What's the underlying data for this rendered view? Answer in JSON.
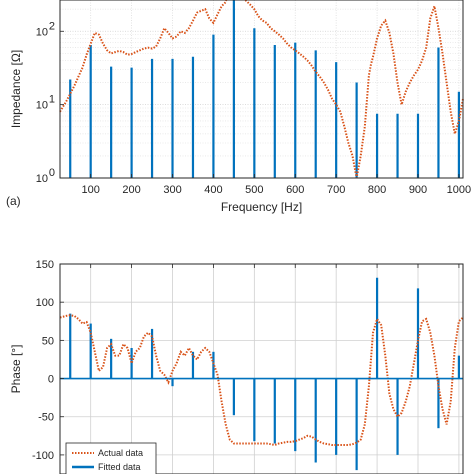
{
  "chart_data": [
    {
      "type": "line",
      "panel_label": "(a)",
      "xlabel": "Frequency [Hz]",
      "ylabel": "Impedance [Ω]",
      "yscale": "log",
      "xlim": [
        25,
        1010
      ],
      "ylim": [
        1,
        500
      ],
      "grid": true,
      "xticks": [
        100,
        200,
        300,
        400,
        500,
        600,
        700,
        800,
        900,
        1000
      ],
      "yticks": [
        {
          "v": 1,
          "label": "10^0"
        },
        {
          "v": 10,
          "label": "10^1"
        },
        {
          "v": 100,
          "label": "10^2"
        }
      ],
      "series": [
        {
          "name": "Actual data",
          "style": "dotted-line",
          "color": "#d95319",
          "x": [
            25,
            40,
            50,
            60,
            70,
            80,
            90,
            100,
            110,
            120,
            130,
            140,
            150,
            160,
            170,
            180,
            190,
            200,
            210,
            220,
            230,
            240,
            250,
            260,
            270,
            280,
            290,
            300,
            310,
            320,
            330,
            340,
            350,
            360,
            370,
            380,
            390,
            400,
            410,
            420,
            430,
            440,
            450,
            460,
            470,
            480,
            490,
            500,
            510,
            520,
            530,
            540,
            550,
            560,
            570,
            580,
            590,
            600,
            610,
            620,
            630,
            640,
            650,
            660,
            670,
            680,
            690,
            700,
            710,
            720,
            730,
            740,
            750,
            760,
            770,
            780,
            785,
            790,
            800,
            810,
            820,
            830,
            840,
            850,
            860,
            870,
            880,
            890,
            900,
            910,
            920,
            930,
            940,
            950,
            960,
            970,
            980,
            990,
            1000,
            1010
          ],
          "y": [
            8,
            11,
            14,
            18,
            24,
            32,
            48,
            68,
            95,
            90,
            68,
            55,
            50,
            52,
            54,
            52,
            48,
            49,
            52,
            55,
            58,
            60,
            58,
            62,
            80,
            110,
            95,
            80,
            85,
            100,
            95,
            110,
            140,
            180,
            190,
            200,
            150,
            130,
            170,
            220,
            250,
            400,
            520,
            400,
            300,
            260,
            230,
            200,
            160,
            140,
            130,
            110,
            100,
            90,
            80,
            68,
            60,
            55,
            50,
            45,
            40,
            34,
            28,
            24,
            20,
            16,
            12,
            10,
            8,
            5,
            3,
            2,
            1,
            2,
            5,
            25,
            35,
            45,
            80,
            120,
            140,
            95,
            50,
            20,
            10,
            15,
            20,
            25,
            30,
            40,
            60,
            150,
            220,
            110,
            50,
            20,
            8,
            4,
            6,
            12
          ]
        },
        {
          "name": "Fitted data",
          "style": "stem",
          "color": "#0072bd",
          "x": [
            50,
            100,
            150,
            200,
            250,
            300,
            350,
            400,
            450,
            500,
            550,
            600,
            650,
            700,
            750,
            800,
            850,
            900,
            950,
            1000
          ],
          "y": [
            22,
            65,
            33,
            32,
            42,
            42,
            45,
            90,
            280,
            110,
            65,
            70,
            55,
            38,
            20,
            7.5,
            7.5,
            7.5,
            60,
            15
          ]
        }
      ]
    },
    {
      "type": "line",
      "xlabel": "",
      "ylabel": "Phase [°]",
      "xlim": [
        25,
        1010
      ],
      "ylim": [
        -125,
        150
      ],
      "grid": true,
      "yticks": [
        150,
        100,
        50,
        0,
        -50,
        -100
      ],
      "legend": "bottom-left",
      "series": [
        {
          "name": "Actual data",
          "style": "dotted-line",
          "color": "#d95319",
          "x": [
            25,
            40,
            50,
            60,
            70,
            80,
            90,
            100,
            110,
            120,
            130,
            140,
            150,
            160,
            170,
            180,
            190,
            200,
            210,
            220,
            230,
            240,
            250,
            260,
            270,
            280,
            290,
            300,
            310,
            320,
            330,
            340,
            350,
            360,
            370,
            380,
            390,
            400,
            410,
            420,
            430,
            440,
            450,
            460,
            470,
            480,
            490,
            500,
            510,
            520,
            530,
            540,
            550,
            560,
            570,
            580,
            590,
            600,
            610,
            620,
            630,
            640,
            650,
            660,
            670,
            680,
            690,
            700,
            710,
            720,
            730,
            740,
            750,
            760,
            770,
            780,
            790,
            800,
            810,
            820,
            830,
            840,
            850,
            860,
            870,
            880,
            890,
            900,
            910,
            920,
            930,
            940,
            950,
            960,
            970,
            980,
            990,
            1000,
            1010
          ],
          "y": [
            80,
            82,
            83,
            82,
            78,
            72,
            74,
            60,
            35,
            10,
            15,
            40,
            45,
            30,
            30,
            45,
            40,
            20,
            35,
            40,
            55,
            60,
            55,
            30,
            10,
            5,
            -5,
            10,
            20,
            35,
            30,
            40,
            30,
            25,
            35,
            40,
            35,
            20,
            5,
            -30,
            -60,
            -80,
            -85,
            -85,
            -85,
            -85,
            -85,
            -85,
            -85,
            -85,
            -85,
            -86,
            -87,
            -85,
            -84,
            -83,
            -83,
            -82,
            -80,
            -78,
            -75,
            -76,
            -80,
            -83,
            -85,
            -86,
            -87,
            -87,
            -87,
            -87,
            -87,
            -86,
            -84,
            -80,
            -60,
            -10,
            60,
            78,
            70,
            30,
            -20,
            -40,
            -50,
            -45,
            -30,
            -10,
            20,
            50,
            75,
            78,
            60,
            30,
            -10,
            -40,
            -60,
            -30,
            40,
            75,
            80
          ],
          "legend_label": "Actual data"
        },
        {
          "name": "Fitted data",
          "style": "stem",
          "color": "#0072bd",
          "x": [
            50,
            100,
            150,
            200,
            250,
            300,
            350,
            400,
            450,
            500,
            550,
            600,
            650,
            700,
            750,
            800,
            850,
            900,
            950,
            1000
          ],
          "y": [
            85,
            72,
            52,
            40,
            65,
            -10,
            35,
            35,
            -48,
            -82,
            -85,
            -95,
            -110,
            -100,
            -120,
            132,
            -100,
            118,
            -65,
            30
          ]
        }
      ]
    }
  ]
}
